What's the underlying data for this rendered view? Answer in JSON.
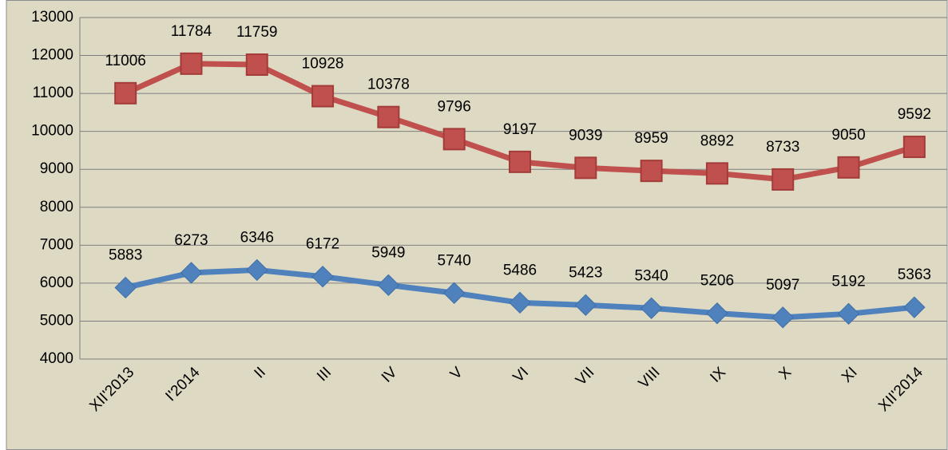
{
  "chart_data": {
    "type": "line",
    "categories": [
      "XII'2013",
      "I'2014",
      "II",
      "III",
      "IV",
      "V",
      "VI",
      "VII",
      "VIII",
      "IX",
      "X",
      "XI",
      "XII'2014"
    ],
    "series": [
      {
        "color": "#c0504d",
        "marker": "square",
        "values": [
          11006,
          11784,
          11759,
          10928,
          10378,
          9796,
          9197,
          9039,
          8959,
          8892,
          8733,
          9050,
          9592
        ]
      },
      {
        "color": "#4f81bd",
        "marker": "diamond",
        "values": [
          5883,
          6273,
          6346,
          6172,
          5949,
          5740,
          5486,
          5423,
          5340,
          5206,
          5097,
          5192,
          5363
        ]
      }
    ],
    "ylim": [
      4000,
      13000
    ],
    "yticks": [
      4000,
      5000,
      6000,
      7000,
      8000,
      9000,
      10000,
      11000,
      12000,
      13000
    ],
    "grid": true
  }
}
